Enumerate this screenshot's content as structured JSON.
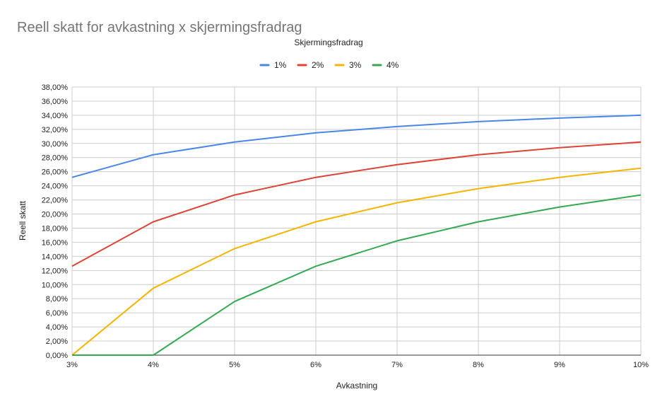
{
  "chart_data": {
    "type": "line",
    "title": "Reell skatt for avkastning x skjermingsfradrag",
    "legend_title": "Skjermingsfradrag",
    "legend_position": "top",
    "xlabel": "Avkastning",
    "ylabel": "Reell skatt",
    "categories": [
      "3%",
      "4%",
      "5%",
      "6%",
      "7%",
      "8%",
      "9%",
      "10%"
    ],
    "ylim": [
      0,
      38
    ],
    "y_ticks": [
      "0,00%",
      "2,00%",
      "4,00%",
      "6,00%",
      "8,00%",
      "10,00%",
      "12,00%",
      "14,00%",
      "16,00%",
      "18,00%",
      "20,00%",
      "22,00%",
      "24,00%",
      "26,00%",
      "28,00%",
      "30,00%",
      "32,00%",
      "34,00%",
      "36,00%",
      "38,00%"
    ],
    "grid": true,
    "series": [
      {
        "name": "1%",
        "color": "#4a86e8",
        "values": [
          25.2,
          28.4,
          30.2,
          31.5,
          32.4,
          33.1,
          33.6,
          34.0
        ]
      },
      {
        "name": "2%",
        "color": "#db4437",
        "values": [
          12.6,
          18.9,
          22.7,
          25.2,
          27.0,
          28.4,
          29.4,
          30.2
        ]
      },
      {
        "name": "3%",
        "color": "#f4b400",
        "values": [
          0.0,
          9.5,
          15.1,
          18.9,
          21.6,
          23.6,
          25.2,
          26.5
        ]
      },
      {
        "name": "4%",
        "color": "#34a853",
        "values": [
          0.0,
          0.0,
          7.6,
          12.6,
          16.2,
          18.9,
          21.0,
          22.7
        ]
      }
    ]
  }
}
